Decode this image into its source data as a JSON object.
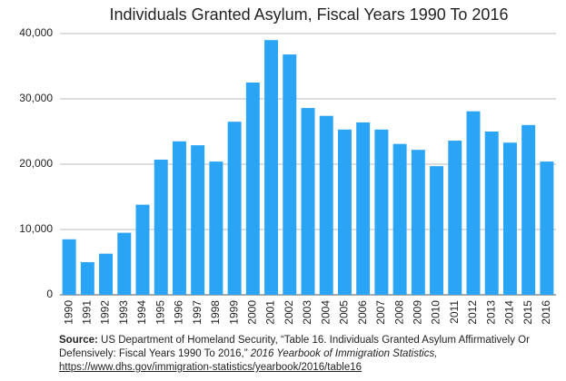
{
  "chart_data": {
    "type": "bar",
    "title": "Individuals Granted Asylum, Fiscal Years 1990 To 2016",
    "categories": [
      "1990",
      "1991",
      "1992",
      "1993",
      "1994",
      "1995",
      "1996",
      "1997",
      "1998",
      "1999",
      "2000",
      "2001",
      "2002",
      "2003",
      "2004",
      "2005",
      "2006",
      "2007",
      "2008",
      "2009",
      "2010",
      "2011",
      "2012",
      "2013",
      "2014",
      "2015",
      "2016"
    ],
    "values": [
      8500,
      5000,
      6300,
      9500,
      13800,
      20700,
      23500,
      22900,
      20400,
      26500,
      32500,
      39000,
      36800,
      28600,
      27400,
      25300,
      26400,
      25300,
      23100,
      22200,
      19700,
      23600,
      28100,
      25000,
      23300,
      26000,
      20400
    ],
    "color": "#2aa4f4",
    "ylim": [
      0,
      40000
    ],
    "yticks": [
      0,
      {
        "value": 10000,
        "label": "10,000"
      },
      {
        "value": 20000,
        "label": "20,000"
      },
      {
        "value": 30000,
        "label": "30,000"
      },
      {
        "value": 40000,
        "label": "40,000"
      }
    ],
    "grid": true,
    "source": {
      "label": "Source:",
      "text": "US Department of Homeland Security, “Table 16. Individuals Granted Asylum Affirmatively Or Defensively: Fiscal Years 1990 To 2016,”",
      "publication": "2016 Yearbook of Immigration Statistics,",
      "url": "https://www.dhs.gov/immigration-statistics/yearbook/2016/table16"
    }
  }
}
